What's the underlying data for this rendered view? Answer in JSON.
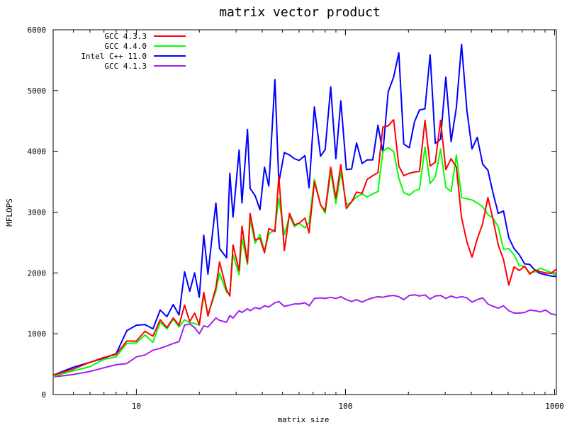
{
  "chart_data": {
    "type": "line",
    "title": "matrix vector product",
    "xlabel": "matrix size",
    "ylabel": "MFLOPS",
    "x_scale": "log",
    "xlim": [
      4,
      1020
    ],
    "ylim": [
      0,
      6000
    ],
    "x_ticks": [
      10,
      100,
      1000
    ],
    "x_tick_labels": [
      "10",
      "100",
      "1000"
    ],
    "y_ticks": [
      0,
      1000,
      2000,
      3000,
      4000,
      5000,
      6000
    ],
    "y_tick_labels": [
      "0",
      "1000",
      "2000",
      "3000",
      "4000",
      "5000",
      "6000"
    ],
    "grid": false,
    "legend_position": "top-left",
    "x": [
      4,
      5,
      6,
      7,
      8,
      9,
      10,
      11,
      12,
      13,
      14,
      15,
      16,
      17,
      18,
      19,
      20,
      21,
      22,
      24,
      25,
      27,
      28,
      29,
      31,
      32,
      34,
      35,
      37,
      39,
      41,
      43,
      46,
      48,
      51,
      54,
      57,
      60,
      64,
      67,
      71,
      76,
      80,
      85,
      90,
      95,
      101,
      107,
      113,
      120,
      127,
      135,
      143,
      151,
      160,
      170,
      180,
      190,
      202,
      214,
      226,
      240,
      254,
      269,
      285,
      302,
      320,
      339,
      359,
      381,
      403,
      427,
      453,
      480,
      508,
      538,
      570,
      604,
      640,
      678,
      719,
      761,
      807,
      855,
      906,
      960,
      1017
    ],
    "series": [
      {
        "name": "GCC 4.3.3",
        "color": "#ff0000",
        "values": [
          320,
          420,
          530,
          610,
          660,
          880,
          880,
          1040,
          960,
          1230,
          1100,
          1260,
          1140,
          1470,
          1200,
          1340,
          1150,
          1680,
          1290,
          1760,
          2180,
          1720,
          1620,
          2460,
          2040,
          2770,
          2170,
          2980,
          2540,
          2570,
          2330,
          2730,
          2680,
          3590,
          2370,
          2980,
          2790,
          2820,
          2900,
          2660,
          3500,
          3120,
          3020,
          3740,
          3230,
          3780,
          3060,
          3170,
          3330,
          3310,
          3540,
          3600,
          3650,
          4400,
          4420,
          4520,
          3760,
          3600,
          3640,
          3660,
          3670,
          4510,
          3760,
          3820,
          4510,
          3700,
          3880,
          3740,
          2910,
          2510,
          2260,
          2560,
          2810,
          3240,
          2880,
          2460,
          2220,
          1800,
          2100,
          2040,
          2110,
          1980,
          2050,
          2020,
          2000,
          1990,
          2060
        ]
      },
      {
        "name": "GCC 4.4.0",
        "color": "#00ff00",
        "values": [
          300,
          390,
          460,
          580,
          620,
          840,
          850,
          980,
          860,
          1190,
          1080,
          1240,
          1110,
          1230,
          1180,
          1170,
          1140,
          1640,
          1320,
          1700,
          2000,
          1680,
          1670,
          2300,
          1970,
          2580,
          2140,
          2890,
          2490,
          2630,
          2360,
          2640,
          2720,
          3230,
          2630,
          2940,
          2760,
          2820,
          2740,
          2830,
          3540,
          3120,
          2980,
          3670,
          3140,
          3660,
          3120,
          3170,
          3250,
          3300,
          3250,
          3300,
          3340,
          4000,
          4060,
          4000,
          3560,
          3320,
          3280,
          3350,
          3380,
          4070,
          3470,
          3580,
          4040,
          3410,
          3340,
          3940,
          3240,
          3220,
          3200,
          3150,
          3090,
          2960,
          2900,
          2760,
          2390,
          2400,
          2300,
          2120,
          2110,
          2000,
          2020,
          2080,
          2040,
          2010,
          1960
        ]
      },
      {
        "name": "Intel C++ 11.0",
        "color": "#0000ff",
        "values": [
          320,
          450,
          530,
          600,
          670,
          1050,
          1140,
          1150,
          1080,
          1390,
          1280,
          1480,
          1310,
          2020,
          1700,
          2000,
          1600,
          2620,
          1980,
          3150,
          2400,
          2250,
          3640,
          2920,
          4020,
          3150,
          4360,
          3390,
          3270,
          3040,
          3740,
          3430,
          5180,
          3490,
          3980,
          3940,
          3880,
          3850,
          3930,
          3400,
          4730,
          3920,
          4030,
          5060,
          3880,
          4830,
          3700,
          3710,
          4140,
          3800,
          3860,
          3860,
          4430,
          3980,
          4980,
          5220,
          5620,
          4120,
          4060,
          4490,
          4680,
          4700,
          5590,
          4130,
          4200,
          5220,
          4160,
          4720,
          5760,
          4670,
          4040,
          4230,
          3790,
          3690,
          3310,
          2980,
          3020,
          2580,
          2400,
          2300,
          2150,
          2140,
          2040,
          1990,
          1970,
          1950,
          1940
        ]
      },
      {
        "name": "GCC 4.1.3",
        "color": "#a020f0",
        "values": [
          290,
          330,
          380,
          440,
          490,
          510,
          620,
          650,
          730,
          760,
          800,
          840,
          870,
          1140,
          1160,
          1100,
          1000,
          1130,
          1110,
          1260,
          1220,
          1190,
          1300,
          1260,
          1380,
          1350,
          1410,
          1380,
          1430,
          1410,
          1460,
          1440,
          1510,
          1530,
          1450,
          1470,
          1490,
          1490,
          1510,
          1460,
          1580,
          1590,
          1580,
          1600,
          1580,
          1610,
          1560,
          1530,
          1560,
          1520,
          1560,
          1590,
          1610,
          1600,
          1620,
          1630,
          1610,
          1560,
          1630,
          1640,
          1620,
          1640,
          1570,
          1620,
          1630,
          1580,
          1620,
          1590,
          1610,
          1590,
          1520,
          1560,
          1590,
          1490,
          1450,
          1420,
          1460,
          1380,
          1340,
          1340,
          1350,
          1390,
          1380,
          1360,
          1390,
          1330,
          1310
        ]
      }
    ]
  }
}
